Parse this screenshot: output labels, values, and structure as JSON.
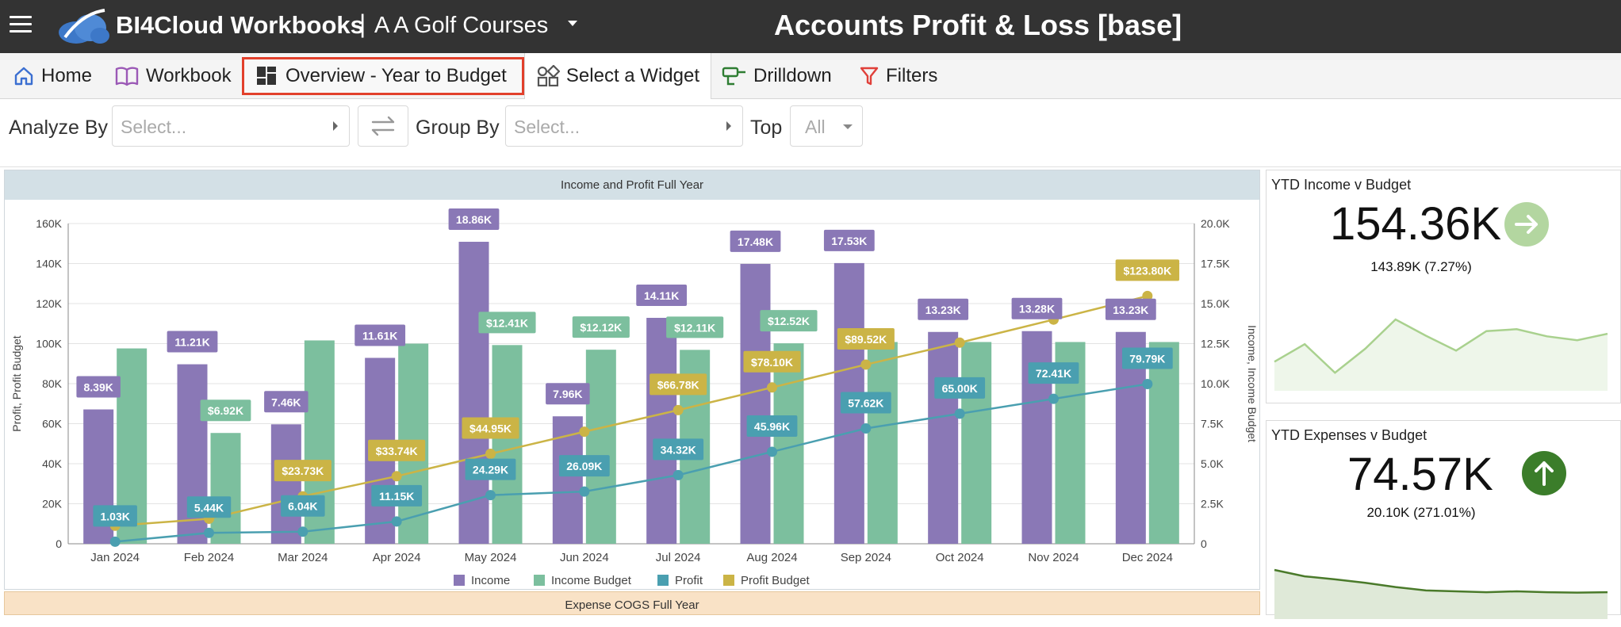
{
  "header": {
    "brand": "BI4Cloud Workbooks",
    "separator": "|",
    "company": "A A Golf Courses",
    "page_title": "Accounts Profit & Loss [base]"
  },
  "nav": {
    "home": "Home",
    "workbook": "Workbook",
    "overview": "Overview - Year to Budget",
    "widget": "Select a Widget",
    "drilldown": "Drilldown",
    "filters": "Filters"
  },
  "filters": {
    "analyze_by_label": "Analyze By",
    "analyze_by_placeholder": "Select...",
    "group_by_label": "Group By",
    "group_by_placeholder": "Select...",
    "top_label": "Top",
    "top_value": "All"
  },
  "chart_panel": {
    "title": "Income and Profit Full Year"
  },
  "bottom_panel": {
    "title": "Expense COGS Full Year"
  },
  "kpi_income": {
    "title": "YTD Income v Budget",
    "value": "154.36K",
    "sub": "143.89K (7.27%)",
    "icon": "arrow-right-icon",
    "icon_color": "#b3d6a0",
    "spark_values": [
      0.35,
      0.62,
      0.18,
      0.55,
      1.0,
      0.75,
      0.52,
      0.82,
      0.85,
      0.74,
      0.68,
      0.78
    ],
    "spark_color": "#a9d18e"
  },
  "kpi_expenses": {
    "title": "YTD Expenses v Budget",
    "value": "74.57K",
    "sub": "20.10K (271.01%)",
    "icon": "arrow-up-icon",
    "icon_color": "#3b7d2a",
    "spark_values": [
      1.0,
      0.85,
      0.78,
      0.7,
      0.6,
      0.52,
      0.5,
      0.48,
      0.5,
      0.48,
      0.47,
      0.48
    ],
    "spark_color": "#4a7a2a"
  },
  "chart_data": {
    "type": "bar",
    "title": "Income and Profit Full Year",
    "categories": [
      "Jan 2024",
      "Feb 2024",
      "Mar 2024",
      "Apr 2024",
      "May 2024",
      "Jun 2024",
      "Jul 2024",
      "Aug 2024",
      "Sep 2024",
      "Oct 2024",
      "Nov 2024",
      "Dec 2024"
    ],
    "ylabel_left": "Profit, Profit Budget",
    "ylabel_right": "Income, Income Budget",
    "left_axis": {
      "ylim": [
        0,
        160000
      ],
      "ticks": [
        "0",
        "20K",
        "40K",
        "60K",
        "80K",
        "100K",
        "120K",
        "140K",
        "160K"
      ]
    },
    "right_axis": {
      "ylim": [
        0,
        20000
      ],
      "ticks": [
        "0",
        "2.5K",
        "5.0K",
        "7.5K",
        "10.0K",
        "12.5K",
        "15.0K",
        "17.5K",
        "20.0K"
      ]
    },
    "legend": [
      "Income",
      "Income Budget",
      "Profit",
      "Profit Budget"
    ],
    "colors": {
      "income": "#8a78b6",
      "income_budget": "#7cbf9e",
      "profit": "#4a9fb0",
      "profit_budget": "#cbb446"
    },
    "series": [
      {
        "name": "Income",
        "axis": "right",
        "type": "bar",
        "values": [
          8390,
          11210,
          7460,
          11610,
          18860,
          7960,
          14110,
          17480,
          17530,
          13230,
          13280,
          13230
        ],
        "labels": [
          "8.39K",
          "11.21K",
          "7.46K",
          "11.61K",
          "18.86K",
          "7.96K",
          "14.11K",
          "17.48K",
          "17.53K",
          "13.23K",
          "13.28K",
          "13.23K"
        ]
      },
      {
        "name": "Income Budget",
        "axis": "right",
        "type": "bar",
        "values": [
          12200,
          6920,
          12700,
          12500,
          12410,
          12120,
          12110,
          12520,
          12600,
          12600,
          12600,
          12600
        ],
        "labels": [
          "",
          "$6.92K",
          "",
          "",
          "$12.41K",
          "$12.12K",
          "$12.11K",
          "$12.52K",
          "",
          "",
          "",
          ""
        ]
      },
      {
        "name": "Profit",
        "axis": "left",
        "type": "line",
        "values": [
          1030,
          5440,
          6040,
          11150,
          24290,
          26090,
          34320,
          45960,
          57620,
          65000,
          72410,
          79790
        ],
        "labels": [
          "1.03K",
          "5.44K",
          "6.04K",
          "11.15K",
          "24.29K",
          "26.09K",
          "34.32K",
          "45.96K",
          "57.62K",
          "65.00K",
          "72.41K",
          "79.79K"
        ]
      },
      {
        "name": "Profit Budget",
        "axis": "left",
        "type": "line",
        "values": [
          9000,
          12500,
          23730,
          33740,
          44950,
          56000,
          66780,
          78100,
          89520,
          100500,
          112000,
          123800
        ],
        "labels": [
          "",
          "",
          "$23.73K",
          "$33.74K",
          "$44.95K",
          "",
          "$66.78K",
          "$78.10K",
          "$89.52K",
          "",
          "",
          "$123.80K"
        ]
      }
    ]
  }
}
